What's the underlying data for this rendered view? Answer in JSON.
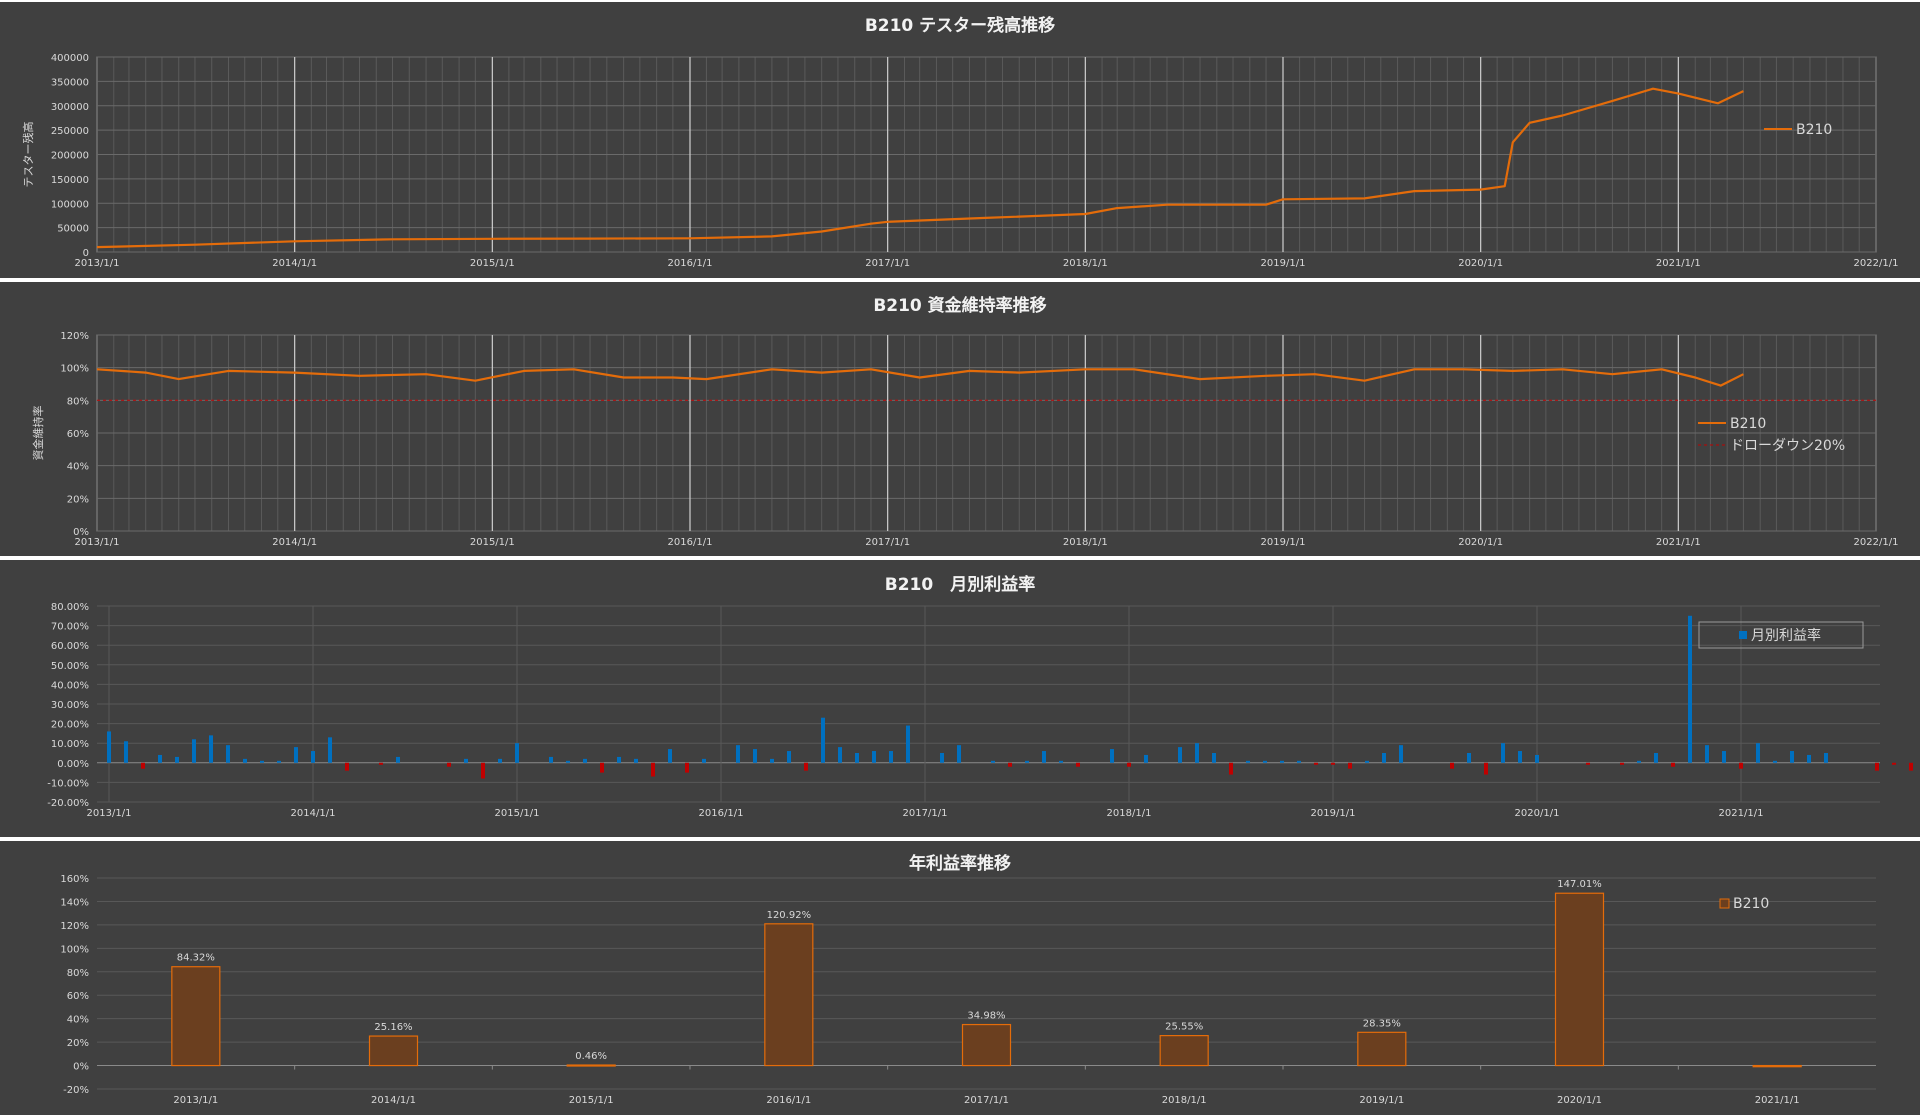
{
  "chart_data": [
    {
      "type": "line",
      "title": "B210 テスター残高推移",
      "ylabel": "テスター残高",
      "xlabel": "",
      "ylim": [
        0,
        400000
      ],
      "yticks": [
        "0",
        "50000",
        "100000",
        "150000",
        "200000",
        "250000",
        "300000",
        "350000",
        "400000"
      ],
      "xticks": [
        "2013/1/1",
        "2014/1/1",
        "2015/1/1",
        "2016/1/1",
        "2017/1/1",
        "2018/1/1",
        "2019/1/1",
        "2020/1/1",
        "2021/1/1",
        "2022/1/1"
      ],
      "xlim": [
        "2013-01-01",
        "2022-01-01"
      ],
      "legend_position": "right",
      "colors": {
        "series": "#e46c0a"
      },
      "series": [
        {
          "name": "B210",
          "x": [
            "2013-01-01",
            "2013-07-01",
            "2014-01-01",
            "2014-07-01",
            "2015-01-01",
            "2015-07-01",
            "2016-01-01",
            "2016-06-01",
            "2016-09-01",
            "2016-12-01",
            "2017-01-01",
            "2017-07-01",
            "2018-01-01",
            "2018-03-01",
            "2018-06-01",
            "2018-12-01",
            "2019-01-01",
            "2019-06-01",
            "2019-09-01",
            "2020-01-01",
            "2020-02-15",
            "2020-03-01",
            "2020-04-01",
            "2020-06-01",
            "2020-09-01",
            "2020-11-15",
            "2021-01-01",
            "2021-03-15",
            "2021-05-01"
          ],
          "values": [
            10000,
            15000,
            22000,
            26000,
            27000,
            27500,
            28000,
            32000,
            42000,
            58000,
            62000,
            70000,
            78000,
            90000,
            97000,
            97000,
            108000,
            110000,
            125000,
            128000,
            135000,
            225000,
            265000,
            280000,
            310000,
            335000,
            325000,
            305000,
            330000
          ]
        }
      ]
    },
    {
      "type": "line",
      "title": "B210 資金維持率推移",
      "ylabel": "資金維持率",
      "xlabel": "",
      "ylim": [
        0,
        120
      ],
      "yticks": [
        "0%",
        "20%",
        "40%",
        "60%",
        "80%",
        "100%",
        "120%"
      ],
      "xticks": [
        "2013/1/1",
        "2014/1/1",
        "2015/1/1",
        "2016/1/1",
        "2017/1/1",
        "2018/1/1",
        "2019/1/1",
        "2020/1/1",
        "2021/1/1",
        "2022/1/1"
      ],
      "xlim": [
        "2013-01-01",
        "2022-01-01"
      ],
      "legend_position": "right",
      "colors": {
        "series": "#e46c0a",
        "threshold": "#c00000"
      },
      "series": [
        {
          "name": "B210",
          "x": [
            "2013-01-01",
            "2013-04-01",
            "2013-06-01",
            "2013-09-01",
            "2014-01-01",
            "2014-05-01",
            "2014-09-01",
            "2014-12-01",
            "2015-03-01",
            "2015-06-01",
            "2015-09-01",
            "2015-12-01",
            "2016-02-01",
            "2016-06-01",
            "2016-09-01",
            "2016-12-01",
            "2017-03-01",
            "2017-06-01",
            "2017-09-01",
            "2018-01-01",
            "2018-04-01",
            "2018-08-01",
            "2018-12-01",
            "2019-03-01",
            "2019-06-01",
            "2019-09-01",
            "2019-12-01",
            "2020-03-01",
            "2020-06-01",
            "2020-09-01",
            "2020-12-01",
            "2021-02-01",
            "2021-03-20",
            "2021-05-01"
          ],
          "values": [
            99,
            97,
            93,
            98,
            97,
            95,
            96,
            92,
            98,
            99,
            94,
            94,
            93,
            99,
            97,
            99,
            94,
            98,
            97,
            99,
            99,
            93,
            95,
            96,
            92,
            99,
            99,
            98,
            99,
            96,
            99,
            94,
            89,
            96
          ]
        },
        {
          "name": "ドローダウン20%",
          "x": [
            "2013-01-01",
            "2022-01-01"
          ],
          "values": [
            80,
            80
          ]
        }
      ]
    },
    {
      "type": "bar",
      "title": "B210　月別利益率",
      "xlabel": "",
      "ylabel": "",
      "ylim": [
        -20,
        80
      ],
      "yticks": [
        "-20.00%",
        "-10.00%",
        "0.00%",
        "10.00%",
        "20.00%",
        "30.00%",
        "40.00%",
        "50.00%",
        "60.00%",
        "70.00%",
        "80.00%"
      ],
      "xticks": [
        "2013/1/1",
        "2014/1/1",
        "2015/1/1",
        "2016/1/1",
        "2017/1/1",
        "2018/1/1",
        "2019/1/1",
        "2020/1/1",
        "2021/1/1"
      ],
      "start_month": "2013-01",
      "legend_position": "top-right",
      "colors": {
        "positive": "#0070c0",
        "negative": "#c00000"
      },
      "series": [
        {
          "name": "月別利益率",
          "values": [
            16,
            11,
            -3,
            4,
            3,
            12,
            14,
            9,
            2,
            1,
            1,
            8,
            6,
            13,
            -4,
            0,
            -1,
            3,
            0,
            0,
            -2,
            2,
            -8,
            2,
            10,
            0,
            3,
            1,
            2,
            -5,
            3,
            2,
            -7,
            7,
            -5,
            2,
            0,
            9,
            7,
            2,
            6,
            -4,
            23,
            8,
            5,
            6,
            6,
            19,
            0,
            5,
            9,
            0,
            1,
            -2,
            1,
            6,
            1,
            -2,
            0,
            7,
            -2,
            4,
            0,
            8,
            10,
            5,
            -6,
            1,
            1,
            1,
            1,
            -1,
            -1,
            -3,
            1,
            5,
            9,
            0,
            0,
            -3,
            5,
            -6,
            10,
            6,
            4,
            0,
            0,
            -1,
            0,
            -1,
            1,
            5,
            -2,
            75,
            9,
            6,
            -3,
            10,
            1,
            6,
            4,
            5,
            0,
            0,
            -4,
            -1,
            -4,
            6,
            1
          ]
        }
      ]
    },
    {
      "type": "bar",
      "title": "年利益率推移",
      "xlabel": "",
      "ylabel": "",
      "ylim": [
        -20,
        160
      ],
      "yticks": [
        "-20%",
        "0%",
        "20%",
        "40%",
        "60%",
        "80%",
        "100%",
        "120%",
        "140%",
        "160%"
      ],
      "categories": [
        "2013/1/1",
        "2014/1/1",
        "2015/1/1",
        "2016/1/1",
        "2017/1/1",
        "2018/1/1",
        "2019/1/1",
        "2020/1/1",
        "2021/1/1"
      ],
      "legend_position": "top-right",
      "colors": {
        "fill": "#6b3f1f",
        "stroke": "#e46c0a"
      },
      "series": [
        {
          "name": "B210",
          "values": [
            84.32,
            25.16,
            0.46,
            120.92,
            34.98,
            25.55,
            28.35,
            147.01,
            -1.0
          ],
          "labels": [
            "84.32%",
            "25.16%",
            "0.46%",
            "120.92%",
            "34.98%",
            "25.55%",
            "28.35%",
            "147.01%",
            ""
          ]
        }
      ]
    }
  ]
}
